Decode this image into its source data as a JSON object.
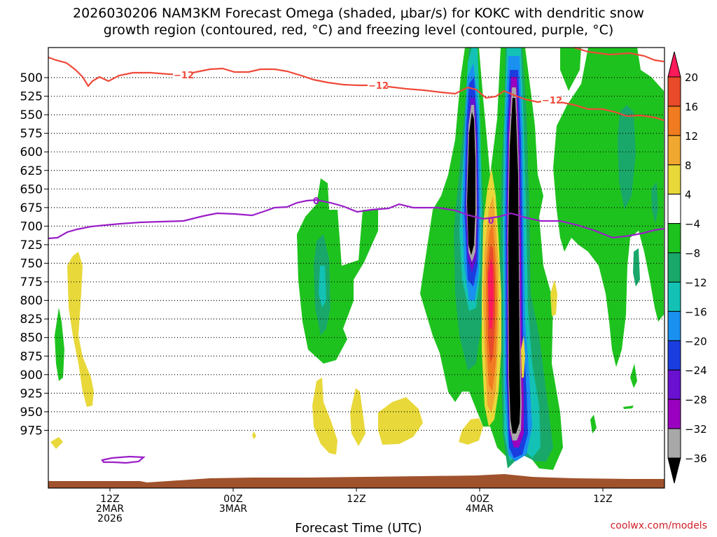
{
  "chart_data": {
    "type": "heatmap",
    "title_line1": "2026030206 NAM3KM Forecast Omega (shaded, μbar/s) for KOKC with dendritic snow",
    "title_line2": "growth region (contoured, red, °C) and freezing level (contoured, purple, °C)",
    "xlabel": "Forecast Time (UTC)",
    "credit": "coolwx.com/models",
    "y_levels": [
      500,
      525,
      550,
      575,
      600,
      625,
      650,
      675,
      700,
      725,
      750,
      775,
      800,
      825,
      850,
      875,
      900,
      925,
      950,
      975
    ],
    "x_ticks": [
      {
        "label": "12Z",
        "sub1": "2MAR",
        "sub2": "2026",
        "hour": 6
      },
      {
        "label": "00Z",
        "sub1": "3MAR",
        "sub2": "",
        "hour": 18
      },
      {
        "label": "12Z",
        "sub1": "",
        "sub2": "",
        "hour": 30
      },
      {
        "label": "00Z",
        "sub1": "4MAR",
        "sub2": "",
        "hour": 42
      },
      {
        "label": "12Z",
        "sub1": "",
        "sub2": "",
        "hour": 54
      }
    ],
    "x_range_hours": [
      0,
      60
    ],
    "colorbar": {
      "labels": [
        "20",
        "16",
        "12",
        "8",
        "4",
        "−4",
        "−8",
        "−12",
        "−16",
        "−20",
        "−24",
        "−28",
        "−32",
        "−36"
      ],
      "colors": [
        "#ff1a5a",
        "#e84a2a",
        "#f07b20",
        "#f0a830",
        "#e8d83a",
        "#ffffff",
        "#1ec21e",
        "#19a86a",
        "#13c2b4",
        "#1a90f0",
        "#1a3de0",
        "#6a10d0",
        "#9a00c0",
        "#a8a8a8",
        "#000000"
      ]
    },
    "contours": {
      "freezing_level_label": "0",
      "dgz_label": "−12"
    }
  }
}
